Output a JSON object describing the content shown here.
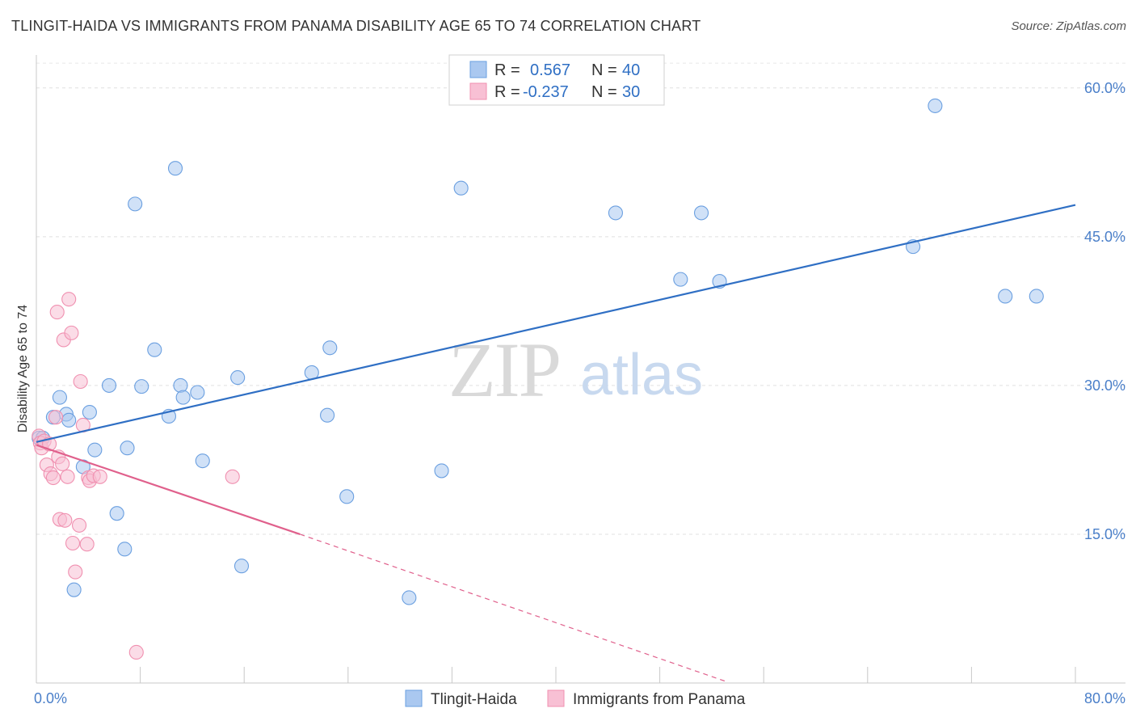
{
  "title": "TLINGIT-HAIDA VS IMMIGRANTS FROM PANAMA DISABILITY AGE 65 TO 74 CORRELATION CHART",
  "source": "Source: ZipAtlas.com",
  "watermark": {
    "part1": "ZIP",
    "part2": "atlas"
  },
  "chart_data": {
    "type": "scatter",
    "title": "TLINGIT-HAIDA VS IMMIGRANTS FROM PANAMA DISABILITY AGE 65 TO 74 CORRELATION CHART",
    "xlabel": "",
    "ylabel": "Disability Age 65 to 74",
    "xlim": [
      0,
      80
    ],
    "ylim": [
      0,
      63
    ],
    "x_tick_labels": [
      "0.0%",
      "80.0%"
    ],
    "y_ticks": [
      15,
      30,
      45,
      60
    ],
    "y_tick_labels": [
      "15.0%",
      "30.0%",
      "45.0%",
      "60.0%"
    ],
    "grid": true,
    "legend_position": "top-center",
    "series": [
      {
        "name": "Tlingit-Haida",
        "color": "#6a9fe0",
        "fill": "#aac8f0",
        "trend_color": "#2f6fc4",
        "R": "0.567",
        "N": "40",
        "trend": {
          "x0": 0,
          "y0": 24.3,
          "x1": 80,
          "y1": 48.2
        },
        "x": [
          0.2,
          0.5,
          1.3,
          1.8,
          2.3,
          2.5,
          2.9,
          3.6,
          4.1,
          4.5,
          5.6,
          6.2,
          6.8,
          7.0,
          7.6,
          8.1,
          9.1,
          10.2,
          10.7,
          11.1,
          11.3,
          12.4,
          12.8,
          15.5,
          15.8,
          21.2,
          22.4,
          22.6,
          23.9,
          28.7,
          31.2,
          32.7,
          44.6,
          49.6,
          51.2,
          52.6,
          67.5,
          69.2,
          74.6,
          77.0
        ],
        "y": [
          24.7,
          24.7,
          26.8,
          28.8,
          27.1,
          26.5,
          9.4,
          21.8,
          27.3,
          23.5,
          30.0,
          17.1,
          13.5,
          23.7,
          48.3,
          29.9,
          33.6,
          26.9,
          51.9,
          30.0,
          28.8,
          29.3,
          22.4,
          30.8,
          11.8,
          31.3,
          27.0,
          33.8,
          18.8,
          8.6,
          21.4,
          49.9,
          47.4,
          40.7,
          47.4,
          40.5,
          44.0,
          58.2,
          39.0,
          39.0
        ]
      },
      {
        "name": "Immigrants from Panama",
        "color": "#f090b0",
        "fill": "#f8c0d4",
        "trend_color": "#e0608c",
        "R": "-0.237",
        "N": "30",
        "trend": {
          "x0": 0,
          "y0": 24.0,
          "x1": 20.3,
          "y1": 15.0
        },
        "trend_dashed": {
          "x0": 20.3,
          "y0": 15.0,
          "x1": 53,
          "y1": 0.2
        },
        "x": [
          0.2,
          0.3,
          0.4,
          0.6,
          0.8,
          1.0,
          1.1,
          1.3,
          1.5,
          1.6,
          1.7,
          1.8,
          2.0,
          2.1,
          2.2,
          2.4,
          2.5,
          2.7,
          2.8,
          3.0,
          3.3,
          3.4,
          3.6,
          3.9,
          4.0,
          4.1,
          4.4,
          4.9,
          7.7,
          15.1
        ],
        "y": [
          24.9,
          24.2,
          23.7,
          24.4,
          22.0,
          24.1,
          21.1,
          20.7,
          26.8,
          37.4,
          22.8,
          16.5,
          22.1,
          34.6,
          16.4,
          20.8,
          38.7,
          35.3,
          14.1,
          11.2,
          15.9,
          30.4,
          26.0,
          14.0,
          20.7,
          20.4,
          20.9,
          20.8,
          3.1,
          20.8
        ]
      }
    ]
  }
}
